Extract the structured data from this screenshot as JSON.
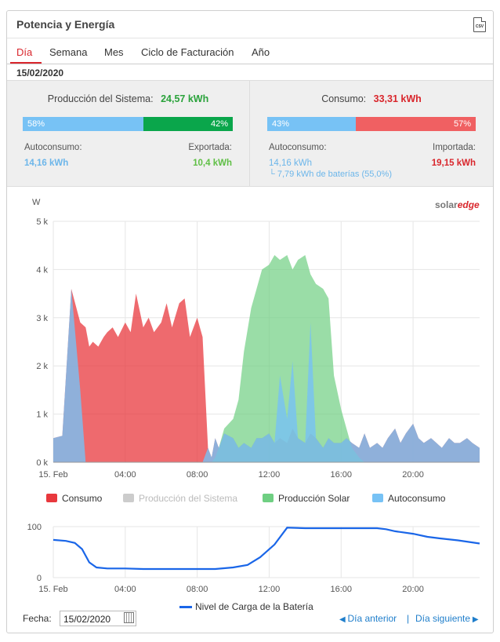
{
  "header": {
    "title": "Potencia y Energía",
    "csv_icon": "csv-file-icon",
    "csv_label": "CSV"
  },
  "tabs": [
    {
      "label": "Día",
      "active": true
    },
    {
      "label": "Semana"
    },
    {
      "label": "Mes"
    },
    {
      "label": "Ciclo de Facturación"
    },
    {
      "label": "Año"
    }
  ],
  "selected_date": "15/02/2020",
  "production": {
    "title": "Producción del Sistema:",
    "total": "24,57 kWh",
    "bar_left_pct": 58,
    "bar_left_label": "58%",
    "bar_right_pct": 42,
    "bar_right_label": "42%",
    "left_label": "Autoconsumo:",
    "left_value": "14,16 kWh",
    "right_label": "Exportada:",
    "right_value": "10,4 kWh"
  },
  "consumption": {
    "title": "Consumo:",
    "total": "33,31 kWh",
    "bar_left_pct": 43,
    "bar_left_label": "43%",
    "bar_right_pct": 57,
    "bar_right_label": "57%",
    "left_label": "Autoconsumo:",
    "left_value": "14,16 kWh",
    "left_sub": "└ 7,79 kWh de baterías (55,0%)",
    "right_label": "Importada:",
    "right_value": "19,15 kWh"
  },
  "colors": {
    "consumo": "#e8383d",
    "produccion_sistema": "#cccccc",
    "produccion_solar": "#6fcf82",
    "autoconsumo": "#77c2f5",
    "battery": "#1a66e8",
    "green_val": "#2aa23b",
    "red_val": "#d9262c",
    "blue_val": "#6cb6ea"
  },
  "brand": "solaredge",
  "chart_data": [
    {
      "type": "area",
      "ylabel": "W",
      "ylim": [
        0,
        5000
      ],
      "yticks": [
        "0 k",
        "1 k",
        "2 k",
        "3 k",
        "4 k",
        "5 k"
      ],
      "xticks": [
        "15. Feb",
        "04:00",
        "08:00",
        "12:00",
        "16:00",
        "20:00"
      ],
      "x_hours": [
        0,
        0.5,
        1,
        1.5,
        1.8,
        2,
        2.2,
        2.5,
        2.8,
        3,
        3.3,
        3.6,
        4,
        4.3,
        4.6,
        5,
        5.3,
        5.6,
        6,
        6.3,
        6.6,
        7,
        7.3,
        7.6,
        8,
        8.3,
        8.6,
        8.8,
        9,
        9.2,
        9.5,
        10,
        10.3,
        10.6,
        11,
        11.3,
        11.6,
        12,
        12.3,
        12.6,
        13,
        13.3,
        13.6,
        14,
        14.3,
        14.6,
        15,
        15.3,
        15.6,
        16,
        16.3,
        16.6,
        17,
        17.3,
        17.6,
        18,
        18.3,
        18.6,
        19,
        19.3,
        19.6,
        20,
        20.3,
        20.6,
        21,
        21.3,
        21.6,
        22,
        22.3,
        22.6,
        23,
        23.3,
        23.7
      ],
      "series": [
        {
          "name": "Consumo",
          "values": [
            500,
            550,
            3600,
            2900,
            2800,
            2400,
            2500,
            2400,
            2600,
            2700,
            2800,
            2600,
            2900,
            2700,
            3500,
            2800,
            3000,
            2700,
            2900,
            3300,
            2800,
            3300,
            3400,
            2600,
            3000,
            2600,
            300,
            100,
            500,
            300,
            600,
            500,
            300,
            400,
            300,
            500,
            500,
            600,
            400,
            500,
            400,
            700,
            500,
            400,
            600,
            500,
            300,
            500,
            400,
            400,
            500,
            400,
            300,
            600,
            300,
            400,
            300,
            500,
            700,
            400,
            600,
            800,
            500,
            400,
            500,
            400,
            300,
            500,
            400,
            400,
            500,
            400,
            300
          ]
        },
        {
          "name": "Producción del Sistema",
          "values": [
            0,
            0,
            0,
            0,
            0,
            0,
            0,
            0,
            0,
            0,
            0,
            0,
            0,
            0,
            0,
            0,
            0,
            0,
            0,
            0,
            0,
            0,
            0,
            0,
            0,
            0,
            0,
            0,
            0,
            0,
            0,
            0,
            0,
            0,
            0,
            0,
            0,
            0,
            0,
            0,
            0,
            0,
            0,
            0,
            0,
            0,
            0,
            0,
            0,
            0,
            0,
            0,
            0,
            0,
            0,
            0,
            0,
            0,
            0,
            0,
            0,
            0,
            0,
            0,
            0,
            0,
            0,
            0,
            0,
            0,
            0,
            0,
            0
          ]
        },
        {
          "name": "Producción Solar",
          "values": [
            0,
            0,
            0,
            0,
            0,
            0,
            0,
            0,
            0,
            0,
            0,
            0,
            0,
            0,
            0,
            0,
            0,
            0,
            0,
            0,
            0,
            0,
            0,
            0,
            0,
            0,
            0,
            0,
            100,
            300,
            700,
            900,
            1300,
            2300,
            3200,
            3600,
            4000,
            4100,
            4300,
            4200,
            4300,
            4000,
            4200,
            4300,
            3900,
            3700,
            3600,
            3400,
            1800,
            1100,
            700,
            300,
            100,
            0,
            0,
            0,
            0,
            0,
            0,
            0,
            0,
            0,
            0,
            0,
            0,
            0,
            0,
            0,
            0,
            0,
            0,
            0,
            0
          ]
        },
        {
          "name": "Autoconsumo",
          "values": [
            500,
            550,
            3600,
            1500,
            0,
            0,
            0,
            0,
            0,
            0,
            0,
            0,
            0,
            0,
            0,
            0,
            0,
            0,
            0,
            0,
            0,
            0,
            0,
            0,
            0,
            0,
            300,
            100,
            500,
            300,
            600,
            500,
            300,
            400,
            300,
            500,
            500,
            600,
            400,
            1800,
            900,
            2100,
            500,
            400,
            2900,
            500,
            300,
            500,
            400,
            400,
            500,
            400,
            300,
            600,
            300,
            400,
            300,
            500,
            700,
            400,
            600,
            800,
            500,
            400,
            500,
            400,
            300,
            500,
            400,
            400,
            500,
            400,
            300
          ]
        }
      ]
    },
    {
      "type": "line",
      "ylim": [
        0,
        100
      ],
      "yticks": [
        "0",
        "100"
      ],
      "xticks": [
        "15. Feb",
        "04:00",
        "08:00",
        "12:00",
        "16:00",
        "20:00"
      ],
      "x_hours": [
        0,
        0.7,
        1.2,
        1.6,
        2,
        2.4,
        3,
        4,
        5,
        6,
        7,
        8,
        9,
        10,
        10.8,
        11.5,
        12.3,
        13,
        14,
        16,
        18,
        18.5,
        19,
        20,
        20.8,
        21.5,
        22.5,
        23.7
      ],
      "series": [
        {
          "name": "Nivel de Carga de la Batería",
          "values": [
            74,
            72,
            68,
            56,
            30,
            20,
            18,
            18,
            17,
            17,
            17,
            17,
            17,
            20,
            25,
            40,
            65,
            98,
            97,
            97,
            97,
            95,
            91,
            86,
            80,
            77,
            73,
            67
          ]
        }
      ]
    }
  ],
  "legend": [
    {
      "label": "Consumo",
      "enabled": true
    },
    {
      "label": "Producción del Sistema",
      "enabled": false
    },
    {
      "label": "Producción Solar",
      "enabled": true
    },
    {
      "label": "Autoconsumo",
      "enabled": true
    }
  ],
  "battery_legend": "Nivel de Carga de la Batería",
  "footer": {
    "fecha_label": "Fecha:",
    "fecha_value": "15/02/2020",
    "prev": "Día anterior",
    "next": "Día siguiente",
    "separator": "|"
  }
}
